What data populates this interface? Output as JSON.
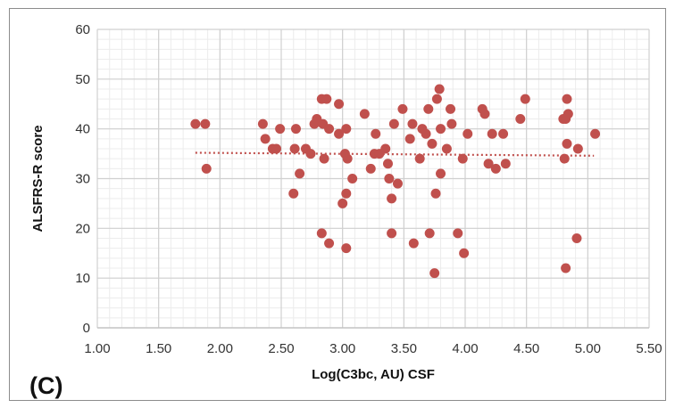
{
  "chart_data": {
    "type": "scatter",
    "panel_label": "(C)",
    "xlabel": "Log(C3bc, AU) CSF",
    "ylabel": "ALSFRS-R score",
    "xlim": [
      1.0,
      5.5
    ],
    "ylim": [
      0,
      60
    ],
    "x_ticks": [
      "1.00",
      "1.50",
      "2.00",
      "2.50",
      "3.00",
      "3.50",
      "4.00",
      "4.50",
      "5.00",
      "5.50"
    ],
    "y_ticks": [
      "0",
      "10",
      "20",
      "30",
      "40",
      "50",
      "60"
    ],
    "grid": true,
    "point_color": "#c0504d",
    "trendline": {
      "type": "linear",
      "style": "dotted",
      "from": [
        1.8,
        35.2
      ],
      "to": [
        5.05,
        34.6
      ]
    },
    "points": [
      [
        1.8,
        41
      ],
      [
        1.88,
        41
      ],
      [
        1.89,
        32
      ],
      [
        2.35,
        41
      ],
      [
        2.37,
        38
      ],
      [
        2.43,
        36
      ],
      [
        2.46,
        36
      ],
      [
        2.49,
        40
      ],
      [
        2.6,
        27
      ],
      [
        2.61,
        36
      ],
      [
        2.62,
        40
      ],
      [
        2.65,
        31
      ],
      [
        2.7,
        36
      ],
      [
        2.74,
        35
      ],
      [
        2.77,
        41
      ],
      [
        2.79,
        42
      ],
      [
        2.83,
        46
      ],
      [
        2.83,
        19
      ],
      [
        2.84,
        41
      ],
      [
        2.85,
        34
      ],
      [
        2.87,
        46
      ],
      [
        2.89,
        40
      ],
      [
        2.89,
        17
      ],
      [
        2.97,
        45
      ],
      [
        2.97,
        39
      ],
      [
        3.0,
        25
      ],
      [
        3.02,
        35
      ],
      [
        3.03,
        40
      ],
      [
        3.03,
        27
      ],
      [
        3.03,
        16
      ],
      [
        3.04,
        34
      ],
      [
        3.08,
        30
      ],
      [
        3.18,
        43
      ],
      [
        3.23,
        32
      ],
      [
        3.26,
        35
      ],
      [
        3.27,
        39
      ],
      [
        3.3,
        35
      ],
      [
        3.35,
        36
      ],
      [
        3.37,
        33
      ],
      [
        3.38,
        30
      ],
      [
        3.4,
        26
      ],
      [
        3.4,
        19
      ],
      [
        3.42,
        41
      ],
      [
        3.45,
        29
      ],
      [
        3.49,
        44
      ],
      [
        3.55,
        38
      ],
      [
        3.57,
        41
      ],
      [
        3.58,
        17
      ],
      [
        3.63,
        34
      ],
      [
        3.65,
        40
      ],
      [
        3.68,
        39
      ],
      [
        3.7,
        44
      ],
      [
        3.71,
        19
      ],
      [
        3.73,
        37
      ],
      [
        3.75,
        11
      ],
      [
        3.76,
        27
      ],
      [
        3.77,
        46
      ],
      [
        3.79,
        48
      ],
      [
        3.8,
        40
      ],
      [
        3.8,
        31
      ],
      [
        3.85,
        36
      ],
      [
        3.88,
        44
      ],
      [
        3.89,
        41
      ],
      [
        3.94,
        19
      ],
      [
        3.98,
        34
      ],
      [
        3.99,
        15
      ],
      [
        4.02,
        39
      ],
      [
        4.14,
        44
      ],
      [
        4.16,
        43
      ],
      [
        4.19,
        33
      ],
      [
        4.22,
        39
      ],
      [
        4.25,
        32
      ],
      [
        4.31,
        39
      ],
      [
        4.33,
        33
      ],
      [
        4.45,
        42
      ],
      [
        4.49,
        46
      ],
      [
        4.8,
        42
      ],
      [
        4.81,
        34
      ],
      [
        4.82,
        12
      ],
      [
        4.82,
        42
      ],
      [
        4.83,
        46
      ],
      [
        4.83,
        37
      ],
      [
        4.84,
        43
      ],
      [
        4.91,
        18
      ],
      [
        4.92,
        36
      ],
      [
        5.06,
        39
      ]
    ]
  }
}
